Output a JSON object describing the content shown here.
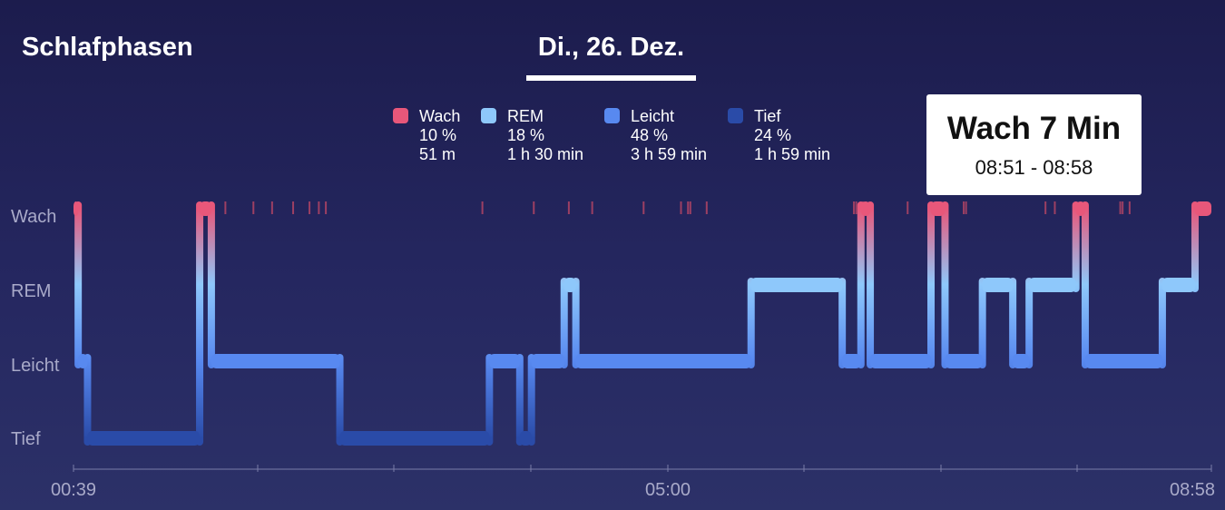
{
  "header": {
    "title": "Schlafphasen",
    "date": "Di., 26. Dez."
  },
  "legend": [
    {
      "name": "Wach",
      "percent": "10 %",
      "duration": "51 m",
      "color": "#e8577a"
    },
    {
      "name": "REM",
      "percent": "18 %",
      "duration": "1 h 30 min",
      "color": "#8ec8fb"
    },
    {
      "name": "Leicht",
      "percent": "48 %",
      "duration": "3 h 59 min",
      "color": "#5889f0"
    },
    {
      "name": "Tief",
      "percent": "24 %",
      "duration": "1 h 59 min",
      "color": "#2a4ba8"
    }
  ],
  "tooltip": {
    "title": "Wach 7 Min",
    "range": "08:51 - 08:58"
  },
  "chart_data": {
    "type": "line",
    "stages": [
      "Wach",
      "REM",
      "Leicht",
      "Tief"
    ],
    "x_tick_labels": [
      "00:39",
      "05:00",
      "08:58"
    ],
    "x_range": [
      "00:39",
      "08:58"
    ],
    "segments": [
      {
        "stage": "Wach",
        "start": 0,
        "end": 2
      },
      {
        "stage": "Leicht",
        "start": 2,
        "end": 6
      },
      {
        "stage": "Tief",
        "start": 6,
        "end": 54
      },
      {
        "stage": "Wach",
        "start": 54,
        "end": 59
      },
      {
        "stage": "Leicht",
        "start": 59,
        "end": 114
      },
      {
        "stage": "Tief",
        "start": 114,
        "end": 178
      },
      {
        "stage": "Leicht",
        "start": 178,
        "end": 191
      },
      {
        "stage": "Tief",
        "start": 191,
        "end": 196
      },
      {
        "stage": "Leicht",
        "start": 196,
        "end": 210
      },
      {
        "stage": "REM",
        "start": 210,
        "end": 215
      },
      {
        "stage": "Leicht",
        "start": 215,
        "end": 290
      },
      {
        "stage": "REM",
        "start": 290,
        "end": 329
      },
      {
        "stage": "Leicht",
        "start": 329,
        "end": 337
      },
      {
        "stage": "Wach",
        "start": 337,
        "end": 341
      },
      {
        "stage": "Leicht",
        "start": 341,
        "end": 367
      },
      {
        "stage": "Wach",
        "start": 367,
        "end": 373
      },
      {
        "stage": "Leicht",
        "start": 373,
        "end": 389
      },
      {
        "stage": "REM",
        "start": 389,
        "end": 402
      },
      {
        "stage": "Leicht",
        "start": 402,
        "end": 409
      },
      {
        "stage": "REM",
        "start": 409,
        "end": 429
      },
      {
        "stage": "Wach",
        "start": 429,
        "end": 433
      },
      {
        "stage": "Leicht",
        "start": 433,
        "end": 466
      },
      {
        "stage": "REM",
        "start": 466,
        "end": 480
      },
      {
        "stage": "Wach",
        "start": 480,
        "end": 487
      }
    ],
    "brief_wake_ticks": [
      65,
      77,
      85,
      94,
      101,
      105,
      108,
      175,
      197,
      212,
      222,
      244,
      260,
      263,
      264,
      271,
      334,
      335,
      338,
      357,
      381,
      382,
      416,
      420,
      448,
      449,
      452
    ]
  }
}
